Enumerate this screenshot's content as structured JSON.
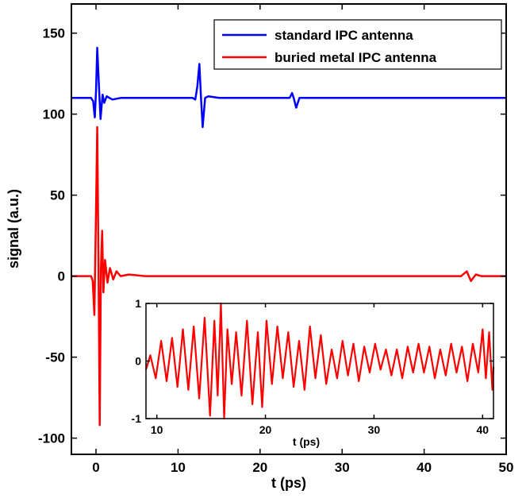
{
  "chart_data": [
    {
      "type": "line",
      "title": "",
      "xlabel": "t (ps)",
      "ylabel": "signal (a.u.)",
      "xlim": [
        -3,
        50
      ],
      "ylim": [
        -110,
        168
      ],
      "xticks": [
        0,
        10,
        20,
        30,
        40,
        50
      ],
      "yticks": [
        -100,
        -50,
        0,
        50,
        100,
        150
      ],
      "legend_position": "top-right",
      "grid": false,
      "series": [
        {
          "name": "standard IPC antenna",
          "color": "#0000ff",
          "x": [
            -3,
            -0.6,
            -0.35,
            -0.15,
            0.0,
            0.15,
            0.35,
            0.55,
            0.8,
            1.0,
            1.3,
            2,
            3,
            5,
            8,
            10,
            11.8,
            12.1,
            12.35,
            12.6,
            12.8,
            13.0,
            13.3,
            13.7,
            15,
            20,
            23.0,
            23.6,
            23.9,
            24.1,
            24.4,
            24.8,
            26,
            30,
            35,
            40,
            45,
            48,
            50
          ],
          "y": [
            110,
            110,
            108,
            98,
            114,
            141,
            118,
            97,
            112,
            107,
            111,
            109,
            110,
            110,
            110,
            110,
            110,
            109,
            117,
            131,
            110,
            92,
            110,
            111,
            110,
            110,
            110,
            110,
            113,
            110,
            104,
            110,
            110,
            110,
            110,
            110,
            110,
            110,
            110
          ]
        },
        {
          "name": "buried metal IPC antenna",
          "color": "#ff0000",
          "x": [
            -3,
            -0.6,
            -0.4,
            -0.2,
            0.0,
            0.15,
            0.3,
            0.45,
            0.6,
            0.75,
            0.9,
            1.1,
            1.4,
            1.7,
            2.1,
            2.5,
            3,
            4,
            6,
            10,
            15,
            20,
            30,
            40,
            44.5,
            45.2,
            45.7,
            46.3,
            47,
            50
          ],
          "y": [
            0,
            0,
            -3,
            -24,
            40,
            92,
            10,
            -92,
            5,
            28,
            -10,
            10,
            -4,
            5,
            -2,
            3,
            0,
            1,
            0,
            0,
            0,
            0,
            0,
            0,
            0,
            3,
            -3,
            1,
            0,
            0
          ]
        }
      ]
    },
    {
      "type": "line",
      "title": "",
      "xlabel": "t (ps)",
      "ylabel": "",
      "xlim": [
        9,
        41
      ],
      "ylim": [
        -1,
        1
      ],
      "xticks": [
        10,
        20,
        30,
        40
      ],
      "yticks": [
        -1,
        0,
        1
      ],
      "grid": false,
      "series": [
        {
          "color": "#ff0000",
          "x": [
            9.0,
            9.4,
            9.9,
            10.4,
            10.9,
            11.4,
            11.9,
            12.4,
            12.9,
            13.4,
            13.9,
            14.4,
            14.9,
            15.3,
            15.6,
            15.9,
            16.2,
            16.5,
            16.9,
            17.3,
            17.8,
            18.3,
            18.8,
            19.3,
            19.7,
            20.1,
            20.6,
            21.1,
            21.6,
            22.1,
            22.6,
            23.1,
            23.6,
            24.1,
            24.6,
            25.1,
            25.6,
            26.1,
            26.6,
            27.1,
            27.6,
            28.1,
            28.6,
            29.1,
            29.6,
            30.1,
            30.6,
            31.1,
            31.6,
            32.1,
            32.6,
            33.1,
            33.6,
            34.1,
            34.6,
            35.1,
            35.6,
            36.1,
            36.6,
            37.1,
            37.6,
            38.1,
            38.6,
            39.1,
            39.6,
            40.0,
            40.3,
            40.6,
            40.9,
            41.0
          ],
          "y": [
            -0.15,
            0.1,
            -0.3,
            0.35,
            -0.35,
            0.4,
            -0.45,
            0.55,
            -0.5,
            0.6,
            -0.65,
            0.75,
            -0.95,
            0.7,
            -0.6,
            1.0,
            -1.0,
            0.55,
            -0.4,
            0.5,
            -0.6,
            0.7,
            -0.75,
            0.5,
            -0.8,
            0.7,
            -0.4,
            0.6,
            -0.3,
            0.5,
            -0.45,
            0.35,
            -0.5,
            0.6,
            -0.3,
            0.45,
            -0.4,
            0.2,
            -0.3,
            0.35,
            -0.25,
            0.3,
            -0.35,
            0.25,
            -0.2,
            0.3,
            -0.15,
            0.2,
            -0.25,
            0.2,
            -0.3,
            0.25,
            -0.2,
            0.3,
            -0.2,
            0.25,
            -0.3,
            0.2,
            -0.25,
            0.3,
            -0.2,
            0.25,
            -0.35,
            0.3,
            -0.2,
            0.55,
            -0.3,
            0.5,
            -0.5,
            -0.1
          ]
        }
      ]
    }
  ]
}
